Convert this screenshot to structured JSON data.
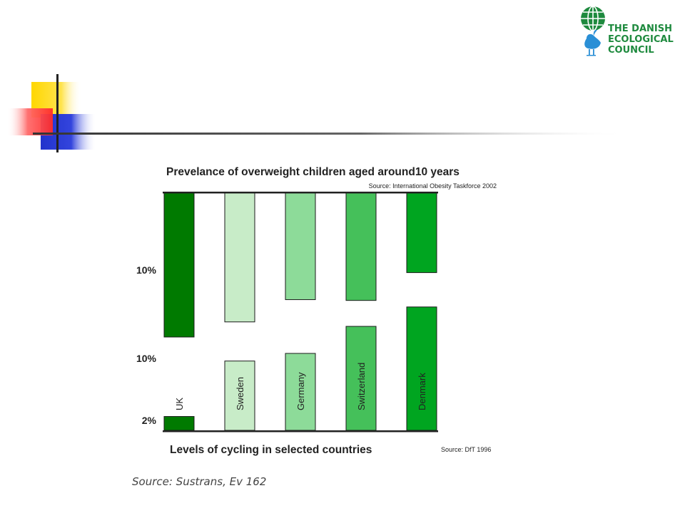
{
  "logo": {
    "name_lines": [
      "THE DANISH",
      "ECOLOGICAL",
      "COUNCIL"
    ],
    "icon": "globe-and-bird-icon",
    "color": "#1e8a3e"
  },
  "decoration": {
    "colors": {
      "yellow": "#ffd700",
      "red": "#ff3030",
      "blue": "#2233cc",
      "line": "#333333"
    }
  },
  "footer": {
    "source": "Source: Sustrans, Ev 162"
  },
  "chart_data": {
    "type": "bar",
    "layout": "mirrored-bar",
    "categories": [
      "UK",
      "Sweden",
      "Germany",
      "Switzerland",
      "Denmark"
    ],
    "top_panel": {
      "title": "Prevelance of overweight children aged around10 years",
      "source": "Source: International Obesity Taskforce 2002",
      "tick_label": "10%",
      "tick_value": 10,
      "ylim": [
        0,
        18.1
      ],
      "direction": "downward",
      "values": [
        18.1,
        16.2,
        13.4,
        13.5,
        10.0
      ]
    },
    "bottom_panel": {
      "title": "Levels of cycling in selected countries",
      "source": "Source: DfT 1996",
      "tick_labels": [
        "10%",
        "2%"
      ],
      "tick_values": [
        10,
        2
      ],
      "ylim": [
        0,
        11.1
      ],
      "direction": "upward",
      "values": [
        2,
        10,
        11.1,
        15.0,
        17.8
      ]
    },
    "colors": [
      "#007a00",
      "#c8ecc8",
      "#8ddb99",
      "#45c05a",
      "#00a520"
    ],
    "grid": false,
    "legend": "none"
  }
}
